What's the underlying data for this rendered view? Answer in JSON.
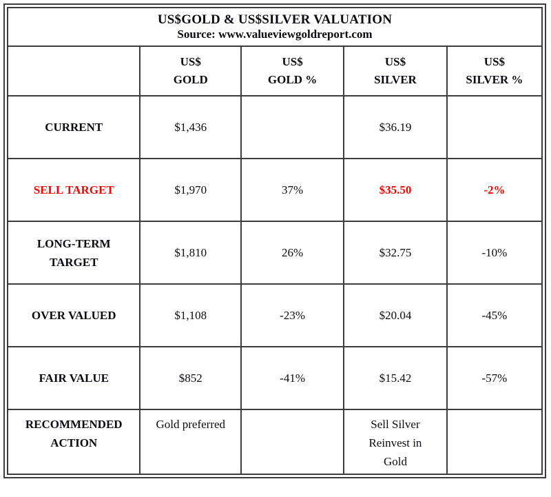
{
  "colors": {
    "accent_red": "#fe0000",
    "border": "#3c3c3c",
    "text": "#0a0a12",
    "background": "#ffffff"
  },
  "header": {
    "title": "US$GOLD & US$SILVER VALUATION",
    "source": "Source: www.valueviewgoldreport.com"
  },
  "table": {
    "column_headers": [
      [
        "US$",
        "GOLD"
      ],
      [
        "US$",
        "GOLD %"
      ],
      [
        "US$",
        "SILVER"
      ],
      [
        "US$",
        "SILVER %"
      ]
    ],
    "rows": [
      {
        "label": [
          "CURRENT"
        ],
        "gold": "$1,436",
        "gold_pct": "",
        "silver": "$36.19",
        "silver_pct": ""
      },
      {
        "label": [
          "SELL TARGET"
        ],
        "gold": "$1,970",
        "gold_pct": "37%",
        "silver": "$35.50",
        "silver_pct": "-2%"
      },
      {
        "label": [
          "LONG-TERM",
          "TARGET"
        ],
        "gold": "$1,810",
        "gold_pct": "26%",
        "silver": "$32.75",
        "silver_pct": "-10%"
      },
      {
        "label": [
          "OVER VALUED"
        ],
        "gold": "$1,108",
        "gold_pct": "-23%",
        "silver": "$20.04",
        "silver_pct": "-45%"
      },
      {
        "label": [
          "FAIR VALUE"
        ],
        "gold": "$852",
        "gold_pct": "-41%",
        "silver": "$15.42",
        "silver_pct": "-57%"
      },
      {
        "label": [
          "RECOMMENDED",
          "ACTION"
        ],
        "gold": "Gold preferred",
        "gold_pct": "",
        "silver_lines": [
          "Sell Silver",
          "Reinvest in",
          "Gold"
        ],
        "silver_pct": ""
      }
    ]
  },
  "chart_data": {
    "type": "table",
    "title": "US$GOLD & US$SILVER VALUATION",
    "source": "www.valueviewgoldreport.com",
    "columns": [
      "US$ GOLD",
      "US$ GOLD %",
      "US$ SILVER",
      "US$ SILVER %"
    ],
    "rows": [
      {
        "label": "CURRENT",
        "us_gold": 1436,
        "us_gold_pct": null,
        "us_silver": 36.19,
        "us_silver_pct": null
      },
      {
        "label": "SELL TARGET",
        "us_gold": 1970,
        "us_gold_pct": 37,
        "us_silver": 35.5,
        "us_silver_pct": -2
      },
      {
        "label": "LONG-TERM TARGET",
        "us_gold": 1810,
        "us_gold_pct": 26,
        "us_silver": 32.75,
        "us_silver_pct": -10
      },
      {
        "label": "OVER VALUED",
        "us_gold": 1108,
        "us_gold_pct": -23,
        "us_silver": 20.04,
        "us_silver_pct": -45
      },
      {
        "label": "FAIR VALUE",
        "us_gold": 852,
        "us_gold_pct": -41,
        "us_silver": 15.42,
        "us_silver_pct": -57
      },
      {
        "label": "RECOMMENDED ACTION",
        "us_gold": "Gold preferred",
        "us_gold_pct": null,
        "us_silver": "Sell Silver Reinvest in Gold",
        "us_silver_pct": null
      }
    ],
    "highlighted_row": "SELL TARGET",
    "highlight_color": "#fe0000",
    "notes": "SELL TARGET label, US$ SILVER value and US$ SILVER % value are shown in bold red"
  }
}
